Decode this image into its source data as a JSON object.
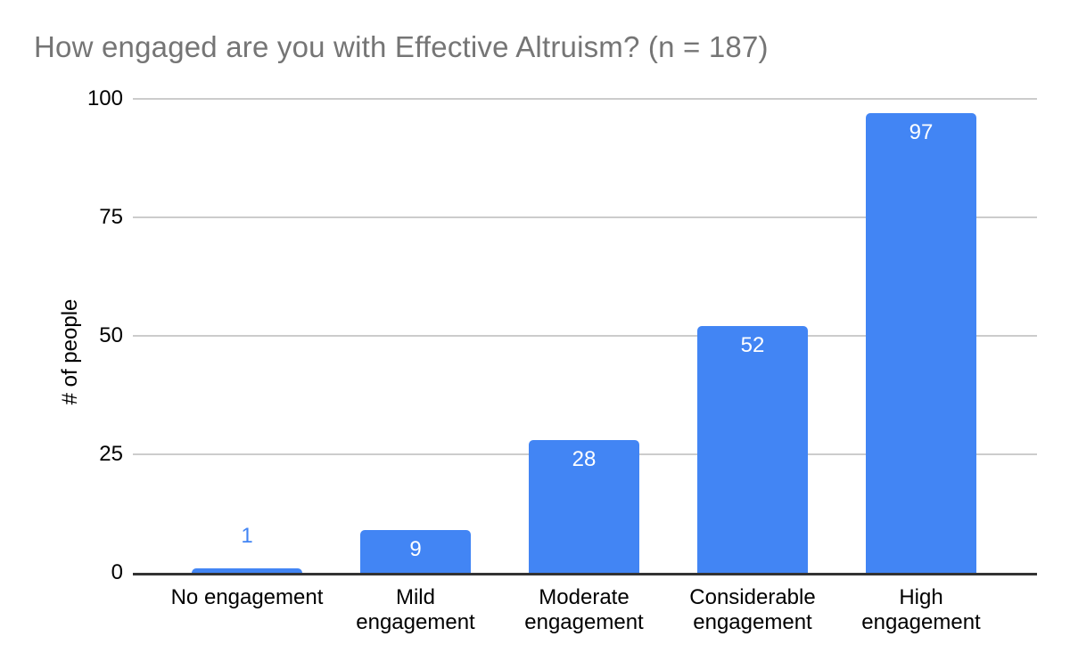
{
  "chart_data": {
    "type": "bar",
    "title": "How engaged are you with Effective Altruism? (n = 187)",
    "xlabel": "",
    "ylabel": "# of people",
    "categories": [
      "No engagement",
      "Mild engagement",
      "Moderate engagement",
      "Considerable engagement",
      "High engagement"
    ],
    "category_label_lines": [
      [
        "No engagement"
      ],
      [
        "Mild",
        "engagement"
      ],
      [
        "Moderate",
        "engagement"
      ],
      [
        "Considerable",
        "engagement"
      ],
      [
        "High",
        "engagement"
      ]
    ],
    "values": [
      1,
      9,
      28,
      52,
      97
    ],
    "value_labels": [
      "1",
      "9",
      "28",
      "52",
      "97"
    ],
    "ylim": [
      0,
      100
    ],
    "yticks": [
      0,
      25,
      50,
      75,
      100
    ],
    "grid": true,
    "legend": "none",
    "colors": {
      "bar": "#4285f4",
      "value_label_inside": "#ffffff",
      "value_label_outside": "#4285f4",
      "title": "#757575",
      "axis_text": "#000000",
      "gridline": "#cccccc",
      "axis_line": "#333333",
      "background": "#ffffff"
    }
  }
}
